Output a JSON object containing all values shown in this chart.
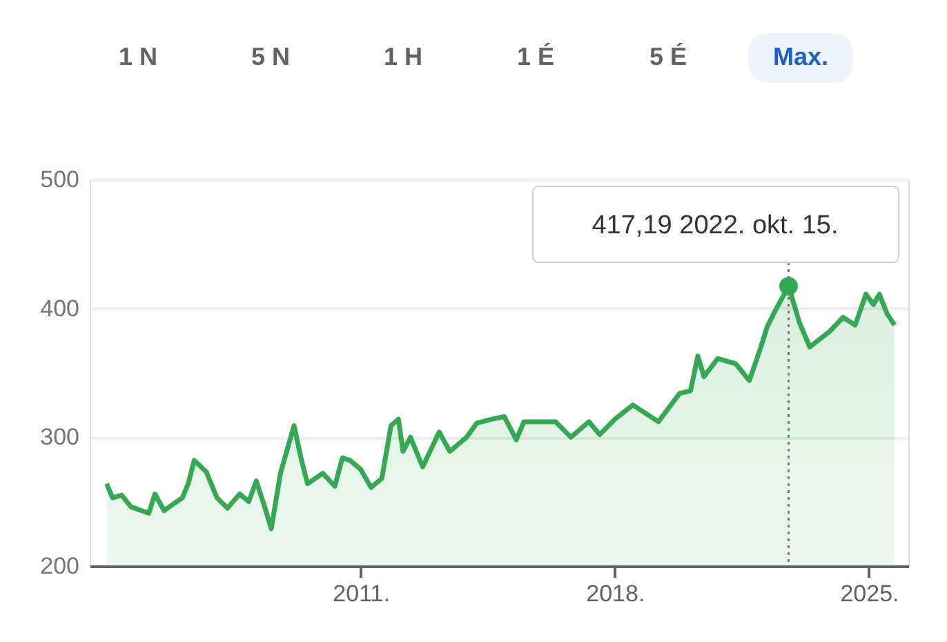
{
  "chart_data": {
    "type": "area",
    "annotations": [
      "1 N",
      "5 N",
      "1 H",
      "1 É",
      "5 É",
      "Max.",
      {
        "text": "417,19  2022. okt. 15.",
        "x": "2022-10-15",
        "y": 417.19
      }
    ],
    "x": [
      "2004-01-01",
      "2004-03-01",
      "2004-06-01",
      "2004-09-01",
      "2005-03-01",
      "2005-05-01",
      "2005-08-01",
      "2006-02-01",
      "2006-04-01",
      "2006-06-01",
      "2006-10-01",
      "2007-01-15",
      "2007-05-01",
      "2007-09-01",
      "2007-12-01",
      "2008-02-15",
      "2008-05-01",
      "2008-07-15",
      "2008-10-15",
      "2009-03-01",
      "2009-05-15",
      "2009-07-15",
      "2009-12-15",
      "2010-04-15",
      "2010-07-01",
      "2010-09-15",
      "2011-01-01",
      "2011-04-15",
      "2011-08-01",
      "2011-11-01",
      "2012-01-15",
      "2012-03-01",
      "2012-05-15",
      "2012-09-15",
      "2013-03-01",
      "2013-06-15",
      "2013-12-01",
      "2014-03-15",
      "2014-08-15",
      "2014-12-15",
      "2015-04-15",
      "2015-07-01",
      "2016-05-15",
      "2016-10-15",
      "2017-04-15",
      "2017-08-01",
      "2018-01-01",
      "2018-07-01",
      "2019-03-15",
      "2019-10-15",
      "2020-02-01",
      "2020-04-15",
      "2020-06-15",
      "2020-11-01",
      "2021-05-01",
      "2021-09-15",
      "2022-01-01",
      "2022-03-15",
      "2022-06-15",
      "2022-10-15",
      "2023-02-01",
      "2023-05-15",
      "2023-12-01",
      "2024-04-15",
      "2024-08-15",
      "2024-12-01",
      "2025-02-15",
      "2025-04-15",
      "2025-07-01",
      "2025-09-15"
    ],
    "series": [
      {
        "color": "#34a853",
        "values": [
          264,
          253,
          255,
          246,
          241,
          256,
          243,
          253,
          264,
          282,
          273,
          253,
          245,
          256,
          250,
          266,
          248,
          229,
          272,
          309,
          282,
          264,
          272,
          262,
          284,
          282,
          275,
          261,
          268,
          309,
          314,
          289,
          300,
          277,
          304,
          289,
          300,
          311,
          314,
          316,
          298,
          312,
          312,
          300,
          312,
          302,
          314,
          325,
          312,
          334,
          336,
          363,
          347,
          361,
          357,
          344,
          368,
          386,
          400,
          417.19,
          389,
          370,
          382,
          393,
          387,
          411,
          403,
          411,
          396,
          387
        ]
      }
    ],
    "ylim": [
      200,
      500
    ],
    "yticks": [
      200,
      300,
      400,
      500
    ],
    "xlim": [
      "2003-07-15",
      "2026-02-01"
    ],
    "xticks": [
      {
        "value": "2011-01-01",
        "label": "2011."
      },
      {
        "value": "2018-01-01",
        "label": "2018."
      },
      {
        "value": "2025-01-01",
        "label": "2025."
      }
    ],
    "ref_lines": [
      {
        "axis": "x",
        "value": "2022-10-15",
        "color": "#777777",
        "line_style": "dotted"
      }
    ],
    "grid": "y"
  }
}
